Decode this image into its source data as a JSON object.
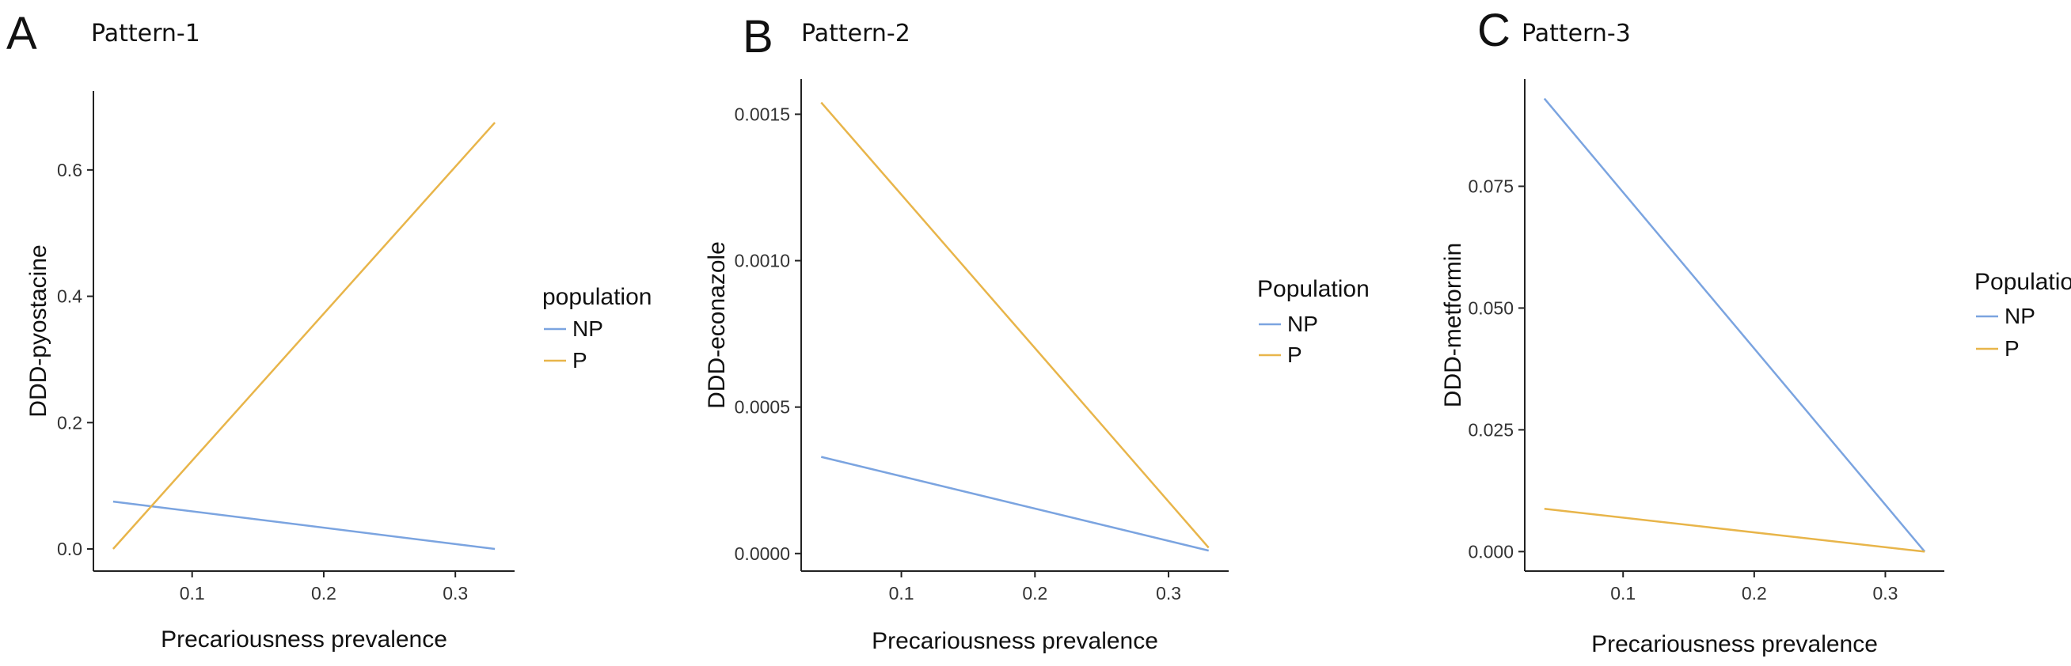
{
  "colors": {
    "NP": "#7ba4e0",
    "P": "#e8b54a"
  },
  "chart_data": [
    {
      "type": "line",
      "panel_letter": "A",
      "title": "Pattern-1",
      "xlabel": "Precariousness prevalence",
      "ylabel": "DDD-pyostacine",
      "xlim": [
        0.025,
        0.345
      ],
      "ylim": [
        -0.035,
        0.725
      ],
      "x_ticks": [
        0.1,
        0.2,
        0.3
      ],
      "x_tick_labels": [
        "0.1",
        "0.2",
        "0.3"
      ],
      "y_ticks": [
        0.0,
        0.2,
        0.4,
        0.6
      ],
      "y_tick_labels": [
        "0.0",
        "0.2",
        "0.4",
        "0.6"
      ],
      "legend": {
        "title": "population",
        "entries": [
          "NP",
          "P"
        ],
        "position": "right"
      },
      "series": [
        {
          "name": "NP",
          "x": [
            0.04,
            0.33
          ],
          "y": [
            0.075,
            0.0
          ]
        },
        {
          "name": "P",
          "x": [
            0.04,
            0.33
          ],
          "y": [
            0.0,
            0.675
          ]
        }
      ]
    },
    {
      "type": "line",
      "panel_letter": "B",
      "title": "Pattern-2",
      "xlabel": "Precariousness prevalence",
      "ylabel": "DDD-econazole",
      "xlim": [
        0.025,
        0.345
      ],
      "ylim": [
        -6e-05,
        0.00162
      ],
      "x_ticks": [
        0.1,
        0.2,
        0.3
      ],
      "x_tick_labels": [
        "0.1",
        "0.2",
        "0.3"
      ],
      "y_ticks": [
        0.0,
        0.0005,
        0.001,
        0.0015
      ],
      "y_tick_labels": [
        "0.0000",
        "0.0005",
        "0.0010",
        "0.0015"
      ],
      "legend": {
        "title": "Population",
        "entries": [
          "NP",
          "P"
        ],
        "position": "right"
      },
      "series": [
        {
          "name": "NP",
          "x": [
            0.04,
            0.33
          ],
          "y": [
            0.00033,
            1e-05
          ]
        },
        {
          "name": "P",
          "x": [
            0.04,
            0.33
          ],
          "y": [
            0.00154,
            2e-05
          ]
        }
      ]
    },
    {
      "type": "line",
      "panel_letter": "C",
      "title": "Pattern-3",
      "xlabel": "Precariousness prevalence",
      "ylabel": "DDD-metformin",
      "xlim": [
        0.025,
        0.345
      ],
      "ylim": [
        -0.004,
        0.097
      ],
      "x_ticks": [
        0.1,
        0.2,
        0.3
      ],
      "x_tick_labels": [
        "0.1",
        "0.2",
        "0.3"
      ],
      "y_ticks": [
        0.0,
        0.025,
        0.05,
        0.075
      ],
      "y_tick_labels": [
        "0.000",
        "0.025",
        "0.050",
        "0.075"
      ],
      "legend": {
        "title": "Population",
        "entries": [
          "NP",
          "P"
        ],
        "position": "right"
      },
      "series": [
        {
          "name": "NP",
          "x": [
            0.04,
            0.33
          ],
          "y": [
            0.093,
            0.0
          ]
        },
        {
          "name": "P",
          "x": [
            0.04,
            0.33
          ],
          "y": [
            0.0088,
            0.0
          ]
        }
      ]
    }
  ]
}
